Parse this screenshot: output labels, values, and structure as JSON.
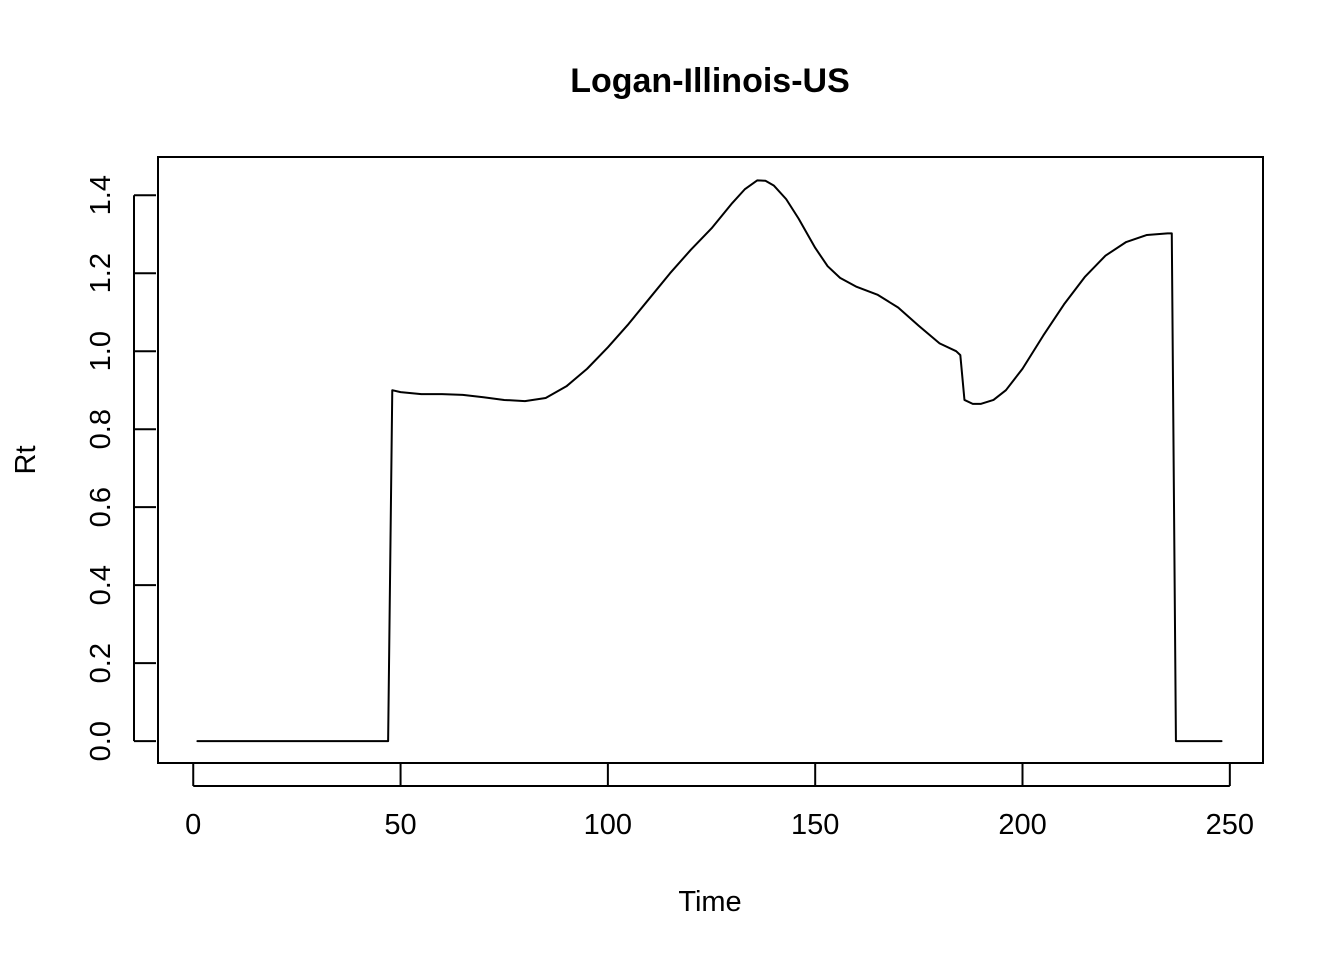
{
  "chart_data": {
    "type": "line",
    "title": "Logan-Illinois-US",
    "xlabel": "Time",
    "ylabel": "Rt",
    "xlim": [
      -8.5,
      258
    ],
    "ylim": [
      -0.056,
      1.498
    ],
    "xticks": [
      0,
      50,
      100,
      150,
      200,
      250
    ],
    "yticks": [
      0.0,
      0.2,
      0.4,
      0.6,
      0.8,
      1.0,
      1.2,
      1.4
    ],
    "xtick_labels": [
      "0",
      "50",
      "100",
      "150",
      "200",
      "250"
    ],
    "ytick_labels": [
      "0.0",
      "0.2",
      "0.4",
      "0.6",
      "0.8",
      "1.0",
      "1.2",
      "1.4"
    ],
    "grid": false,
    "line_color": "#000000",
    "series": [
      {
        "x": [
          1,
          10,
          20,
          30,
          40,
          47,
          48,
          50,
          55,
          60,
          65,
          70,
          75,
          80,
          85,
          90,
          95,
          100,
          105,
          110,
          115,
          120,
          125,
          130,
          133,
          136,
          138,
          140,
          143,
          146,
          150,
          153,
          156,
          160,
          165,
          170,
          175,
          180,
          184,
          185,
          186,
          188,
          190,
          193,
          196,
          200,
          205,
          210,
          215,
          220,
          225,
          230,
          235,
          236,
          237,
          240,
          245,
          248
        ],
        "y": [
          0,
          0,
          0,
          0,
          0,
          0,
          0.9,
          0.895,
          0.89,
          0.89,
          0.888,
          0.882,
          0.875,
          0.872,
          0.88,
          0.91,
          0.955,
          1.01,
          1.07,
          1.135,
          1.2,
          1.26,
          1.315,
          1.38,
          1.415,
          1.438,
          1.437,
          1.425,
          1.39,
          1.34,
          1.265,
          1.218,
          1.188,
          1.165,
          1.145,
          1.112,
          1.065,
          1.02,
          1.0,
          0.99,
          0.875,
          0.865,
          0.865,
          0.875,
          0.9,
          0.955,
          1.04,
          1.12,
          1.19,
          1.245,
          1.28,
          1.298,
          1.302,
          1.302,
          0,
          0,
          0,
          0
        ]
      }
    ]
  }
}
